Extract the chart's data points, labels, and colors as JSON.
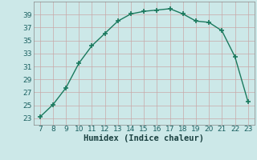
{
  "x": [
    7,
    8,
    9,
    10,
    11,
    12,
    13,
    14,
    15,
    16,
    17,
    18,
    19,
    20,
    21,
    22,
    23
  ],
  "y": [
    23.2,
    25.1,
    27.7,
    31.5,
    34.2,
    36.1,
    38.0,
    39.1,
    39.5,
    39.7,
    39.9,
    39.1,
    38.0,
    37.8,
    36.5,
    32.5,
    25.6
  ],
  "line_color": "#1a7a5e",
  "marker": "+",
  "marker_size": 4,
  "marker_lw": 1.2,
  "line_width": 1.0,
  "bg_color": "#cce8e8",
  "grid_color": "#c8a8a8",
  "xlabel": "Humidex (Indice chaleur)",
  "xlim": [
    6.5,
    23.5
  ],
  "ylim": [
    22,
    41
  ],
  "xticks": [
    7,
    8,
    9,
    10,
    11,
    12,
    13,
    14,
    15,
    16,
    17,
    18,
    19,
    20,
    21,
    22,
    23
  ],
  "yticks": [
    23,
    25,
    27,
    29,
    31,
    33,
    35,
    37,
    39
  ],
  "xlabel_fontsize": 7.5,
  "tick_fontsize": 6.5,
  "tick_color": "#1a6060",
  "xlabel_color": "#1a4040",
  "spine_color": "#888888"
}
